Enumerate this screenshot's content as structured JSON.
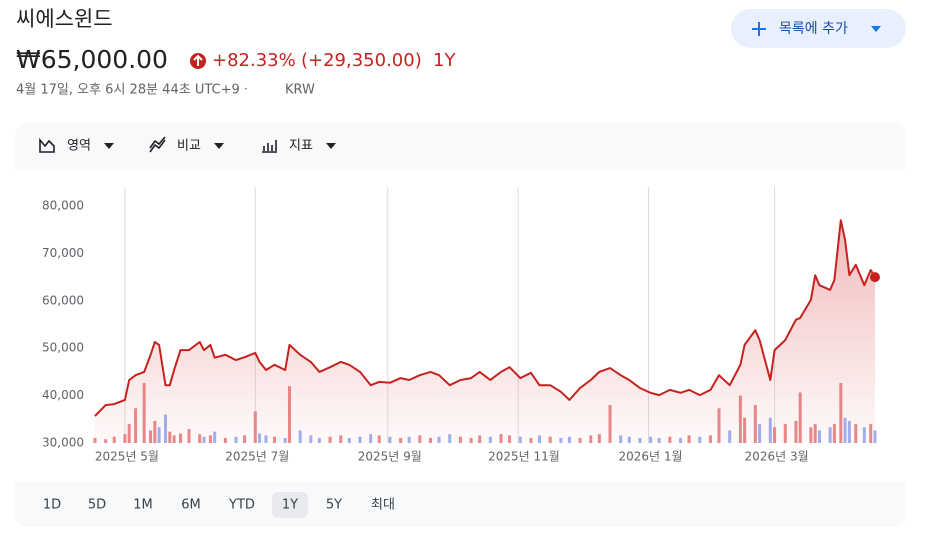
{
  "header": {
    "title": "씨에스윈드",
    "price": "₩65,000.00",
    "change_percent": "+82.33%",
    "change_amount": "(+29,350.00)",
    "period": "1Y",
    "timestamp": "4월 17일, 오후 6시 28분 44초 UTC+9 ·",
    "currency": "KRW",
    "button": "목록에 추가"
  },
  "toolbar": [
    "영역",
    "비교",
    "지표"
  ],
  "ranges": [
    "1D",
    "5D",
    "1M",
    "6M",
    "YTD",
    "1Y",
    "5Y",
    "최대"
  ],
  "selected_range": 5,
  "chart_data": {
    "type": "line",
    "color": "#c5221f",
    "up_color": "#e8888a",
    "down_color": "#9fb0f0",
    "x": [
      0,
      5,
      9,
      14,
      16,
      19,
      23,
      26,
      28,
      30,
      33,
      35,
      37,
      40,
      44,
      49,
      51,
      54,
      56,
      61,
      66,
      70,
      75,
      77,
      80,
      84,
      89,
      91,
      96,
      101,
      105,
      110,
      115,
      119,
      124,
      129,
      133,
      138,
      143,
      147,
      152,
      157,
      161,
      166,
      171,
      176,
      180,
      185,
      190,
      194,
      199,
      204,
      208,
      213,
      218,
      222,
      227,
      232,
      236,
      241,
      246,
      250,
      255,
      260,
      264,
      269,
      274,
      278,
      283,
      288,
      292,
      297,
      302,
      304,
      309,
      311,
      316,
      318,
      323,
      328,
      330,
      335,
      337,
      339,
      344,
      346,
      349,
      351,
      353,
      356,
      360,
      363,
      365
    ],
    "values": [
      35700,
      38000,
      38200,
      39100,
      43300,
      44300,
      45000,
      48600,
      51300,
      50700,
      42200,
      42200,
      45400,
      49600,
      49600,
      51300,
      49600,
      50700,
      48000,
      48600,
      47500,
      48100,
      49000,
      47100,
      45400,
      46500,
      45400,
      50700,
      48600,
      47100,
      45000,
      46000,
      47100,
      46500,
      45000,
      42200,
      42900,
      42700,
      43700,
      43300,
      44300,
      45000,
      44300,
      42200,
      43300,
      43700,
      45000,
      43300,
      45000,
      46000,
      43700,
      44800,
      42200,
      42200,
      40800,
      39100,
      41600,
      43300,
      45000,
      45800,
      44300,
      43300,
      41600,
      40600,
      40100,
      41200,
      40600,
      41200,
      40100,
      41200,
      44300,
      42200,
      46500,
      50700,
      53800,
      51700,
      43300,
      49600,
      51700,
      56000,
      56400,
      60200,
      65400,
      63300,
      62300,
      64400,
      77000,
      72800,
      65400,
      67600,
      63300,
      66500,
      65000
    ],
    "volume": [
      8,
      6,
      10,
      14,
      30,
      55,
      95,
      20,
      35,
      25,
      45,
      18,
      12,
      15,
      22,
      14,
      10,
      12,
      18,
      8,
      10,
      12,
      50,
      15,
      12,
      10,
      8,
      90,
      20,
      12,
      8,
      10,
      12,
      8,
      10,
      14,
      12,
      10,
      8,
      10,
      12,
      8,
      10,
      14,
      10,
      8,
      12,
      10,
      14,
      12,
      10,
      8,
      12,
      10,
      8,
      10,
      8,
      12,
      14,
      60,
      12,
      10,
      8,
      10,
      8,
      10,
      8,
      12,
      10,
      12,
      55,
      20,
      75,
      40,
      60,
      30,
      40,
      25,
      30,
      35,
      80,
      25,
      30,
      20,
      25,
      30,
      95,
      40,
      35,
      30,
      25,
      30,
      20
    ],
    "xlim": [
      0,
      365
    ],
    "ylim": [
      30000,
      80000
    ],
    "xticks": [
      {
        "value": 14,
        "label": "2025년 5월"
      },
      {
        "value": 75,
        "label": "2025년 7월"
      },
      {
        "value": 137,
        "label": "2025년 9월"
      },
      {
        "value": 198,
        "label": "2025년 11월"
      },
      {
        "value": 259,
        "label": "2026년 1월"
      },
      {
        "value": 318,
        "label": "2026년 3월"
      }
    ],
    "yticks": [
      {
        "value": 30000,
        "label": "30,000"
      },
      {
        "value": 40000,
        "label": "40,000"
      },
      {
        "value": 50000,
        "label": "50,000"
      },
      {
        "value": 60000,
        "label": "60,000"
      },
      {
        "value": 70000,
        "label": "70,000"
      },
      {
        "value": 80000,
        "label": "80,000"
      }
    ],
    "grid": true
  }
}
